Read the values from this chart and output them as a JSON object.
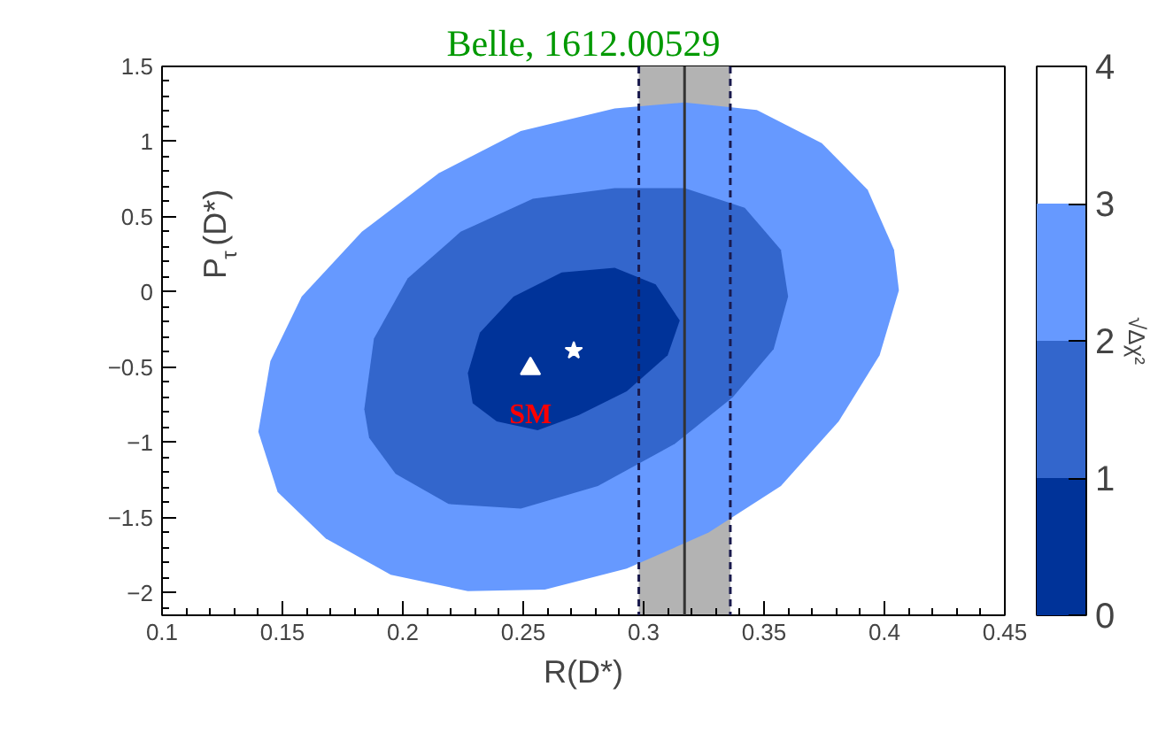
{
  "chart_data": {
    "type": "scatter",
    "title": "Belle, 1612.00529",
    "xlabel": "R(D*)",
    "ylabel": "P$_{τ}$(D*)",
    "clabel": "√Δχ²",
    "xlim": [
      0.1,
      0.45
    ],
    "ylim": [
      -2.15,
      1.5
    ],
    "xticks": [
      0.1,
      0.15,
      0.2,
      0.25,
      0.3,
      0.35,
      0.4,
      0.45
    ],
    "yticks": [
      -2,
      -1.5,
      -1,
      -0.5,
      0,
      0.5,
      1,
      1.5
    ],
    "clim": [
      0,
      4
    ],
    "cticks": [
      0,
      1,
      2,
      3,
      4
    ],
    "grid": false,
    "series": [
      {
        "type": "area",
        "color": "#6699ff",
        "x": [
          0.14,
          0.145,
          0.158,
          0.183,
          0.215,
          0.249,
          0.288,
          0.317,
          0.347,
          0.374,
          0.393,
          0.404,
          0.406,
          0.398,
          0.381,
          0.357,
          0.327,
          0.293,
          0.259,
          0.227,
          0.195,
          0.168,
          0.148
        ],
        "values": [
          -0.93,
          -0.46,
          -0.03,
          0.4,
          0.79,
          1.07,
          1.22,
          1.26,
          1.21,
          0.99,
          0.68,
          0.28,
          0.01,
          -0.42,
          -0.86,
          -1.29,
          -1.6,
          -1.84,
          -1.98,
          -1.99,
          -1.88,
          -1.64,
          -1.33
        ]
      },
      {
        "type": "area",
        "color": "#3366cc",
        "x": [
          0.184,
          0.188,
          0.202,
          0.224,
          0.254,
          0.288,
          0.317,
          0.342,
          0.357,
          0.36,
          0.354,
          0.337,
          0.313,
          0.281,
          0.249,
          0.219,
          0.197,
          0.186
        ],
        "values": [
          -0.78,
          -0.31,
          0.09,
          0.4,
          0.62,
          0.69,
          0.69,
          0.56,
          0.28,
          -0.03,
          -0.38,
          -0.7,
          -1.01,
          -1.29,
          -1.44,
          -1.41,
          -1.21,
          -0.97
        ]
      },
      {
        "type": "area",
        "color": "#003399",
        "x": [
          0.227,
          0.232,
          0.246,
          0.266,
          0.288,
          0.305,
          0.315,
          0.31,
          0.293,
          0.273,
          0.256,
          0.239,
          0.229
        ],
        "values": [
          -0.54,
          -0.27,
          -0.03,
          0.13,
          0.16,
          0.05,
          -0.19,
          -0.42,
          -0.66,
          -0.82,
          -0.92,
          -0.86,
          -0.74
        ]
      },
      {
        "marker": "triangle",
        "color": "#ffffff",
        "x": [
          0.253
        ],
        "values": [
          -0.51
        ]
      },
      {
        "marker": "star",
        "color": "#ffffff",
        "x": [
          0.271
        ],
        "values": [
          -0.39
        ]
      }
    ],
    "bands": [
      {
        "axis": "x",
        "from": 0.298,
        "to": 0.336,
        "color": "#b3b3b3"
      }
    ],
    "ref_lines": [
      {
        "axis": "x",
        "value": 0.317,
        "color": "#333333",
        "line_style": "solid"
      },
      {
        "axis": "x",
        "value": 0.298,
        "color": "#1a1a4d",
        "line_style": "dashed"
      },
      {
        "axis": "x",
        "value": 0.336,
        "color": "#1a1a4d",
        "line_style": "dashed"
      }
    ],
    "annotations": [
      {
        "text": "SM",
        "x": 0.253,
        "y": -0.51
      }
    ]
  }
}
